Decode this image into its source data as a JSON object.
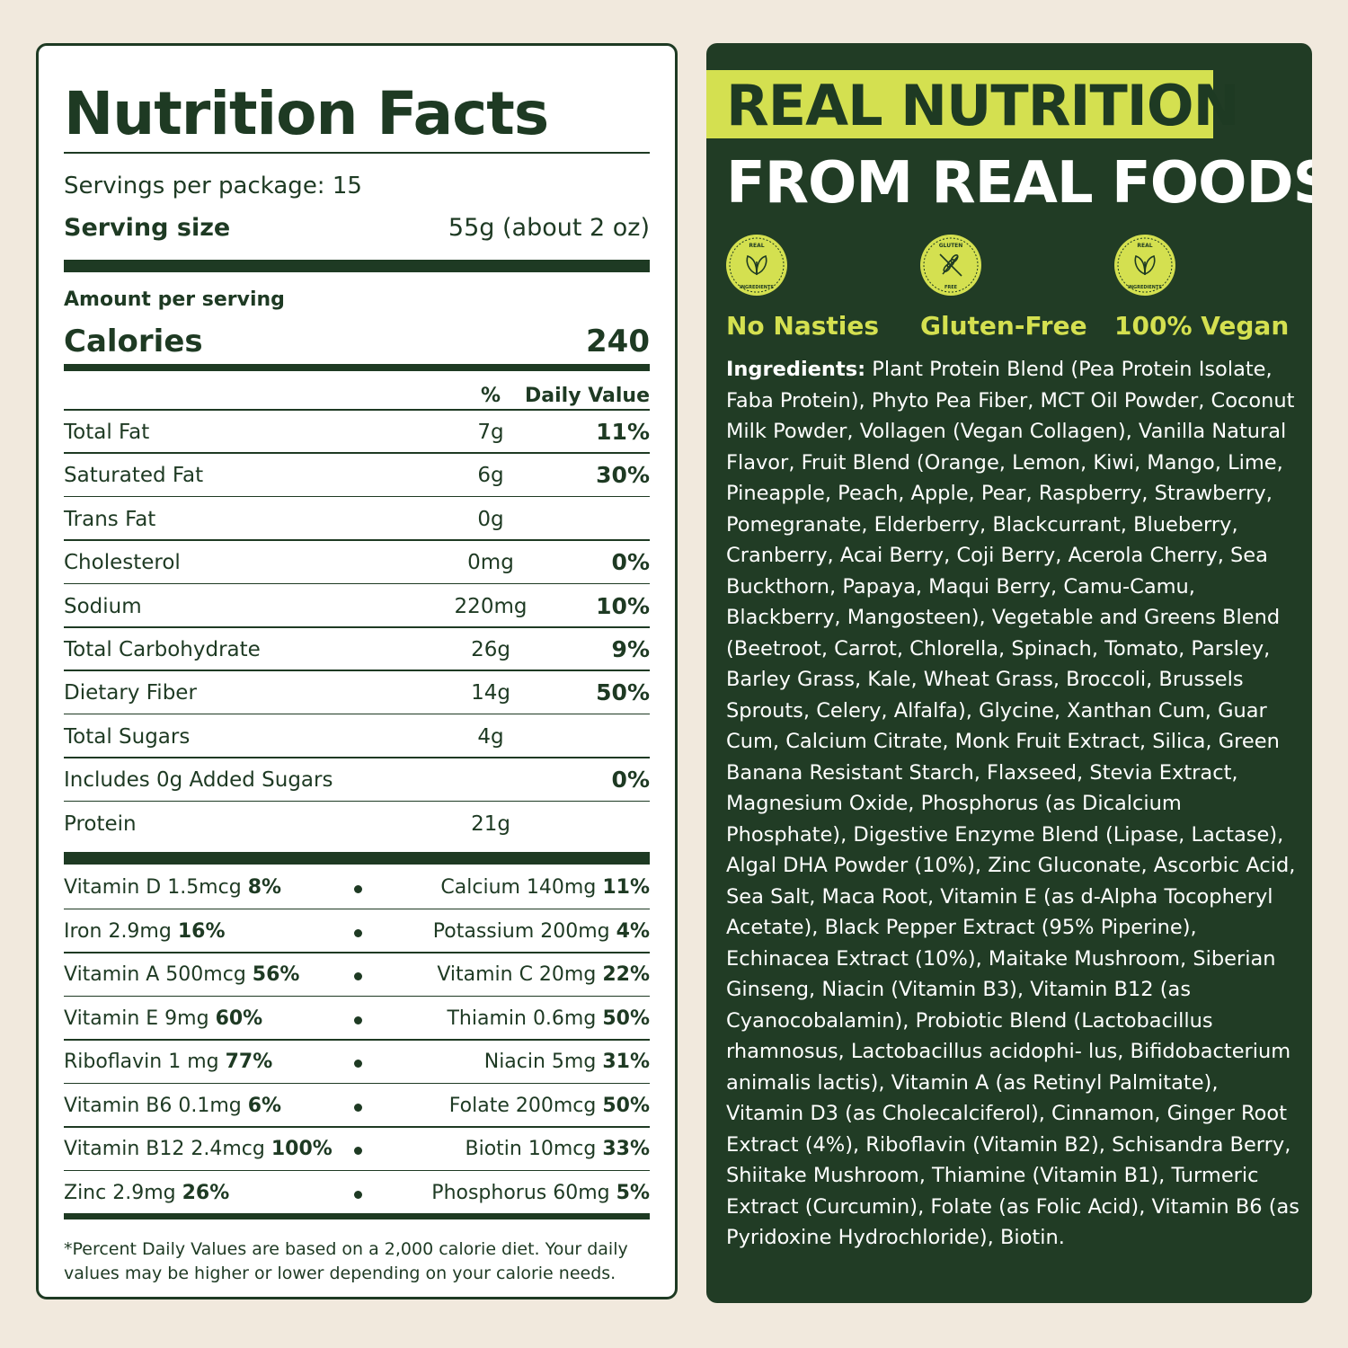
{
  "nutrition": {
    "title": "Nutrition Facts",
    "servings_per_package": "Servings per package: 15",
    "serving_size_label": "Serving size",
    "serving_size_value": "55g (about 2 oz)",
    "amount_per_serving": "Amount per serving",
    "calories_label": "Calories",
    "calories_value": "240",
    "header_pct": "%",
    "header_dv": "Daily Value",
    "rows": [
      {
        "name": "Total Fat",
        "amount": "7g",
        "dv": "11%"
      },
      {
        "name": "Saturated Fat",
        "amount": "6g",
        "dv": "30%"
      },
      {
        "name": "Trans Fat",
        "amount": "0g",
        "dv": ""
      },
      {
        "name": "Cholesterol",
        "amount": "0mg",
        "dv": "0%"
      },
      {
        "name": "Sodium",
        "amount": "220mg",
        "dv": "10%"
      },
      {
        "name": "Total Carbohydrate",
        "amount": "26g",
        "dv": "9%"
      },
      {
        "name": "Dietary Fiber",
        "amount": "14g",
        "dv": "50%"
      },
      {
        "name": "Total Sugars",
        "amount": "4g",
        "dv": ""
      },
      {
        "name": "Includes 0g Added Sugars",
        "amount": "",
        "dv": "0%"
      },
      {
        "name": "Protein",
        "amount": "21g",
        "dv": ""
      }
    ],
    "vitamins": [
      {
        "left_name": "Vitamin D 1.5mcg",
        "left_dv": "8%",
        "right_name": "Calcium 140mg",
        "right_dv": "11%"
      },
      {
        "left_name": "Iron 2.9mg",
        "left_dv": "16%",
        "right_name": "Potassium 200mg",
        "right_dv": "4%"
      },
      {
        "left_name": "Vitamin A 500mcg",
        "left_dv": "56%",
        "right_name": "Vitamin C 20mg",
        "right_dv": "22%"
      },
      {
        "left_name": "Vitamin E 9mg",
        "left_dv": "60%",
        "right_name": "Thiamin 0.6mg",
        "right_dv": "50%"
      },
      {
        "left_name": "Riboflavin 1 mg",
        "left_dv": "77%",
        "right_name": "Niacin 5mg",
        "right_dv": "31%"
      },
      {
        "left_name": "Vitamin B6 0.1mg",
        "left_dv": "6%",
        "right_name": "Folate 200mcg",
        "right_dv": "50%"
      },
      {
        "left_name": "Vitamin B12 2.4mcg",
        "left_dv": "100%",
        "right_name": "Biotin 10mcg",
        "right_dv": "33%"
      },
      {
        "left_name": "Zinc 2.9mg",
        "left_dv": "26%",
        "right_name": "Phosphorus 60mg",
        "right_dv": "5%"
      }
    ],
    "footnote": "*Percent Daily Values are based on a 2,000 calorie diet. Your daily values may be higher or lower depending on your calorie needs."
  },
  "promo": {
    "headline_1": "REAL NUTRITION",
    "headline_2": "FROM REAL FOODS.",
    "badges": [
      {
        "icon": "leaf-real-ingredients-icon",
        "label": "No Nasties",
        "ring_top": "REAL",
        "ring_bottom": "INGREDIENTS"
      },
      {
        "icon": "wheat-gluten-free-icon",
        "label": "Gluten-Free",
        "ring_top": "GLUTEN",
        "ring_bottom": "FREE"
      },
      {
        "icon": "leaf-real-ingredients-icon",
        "label": "100% Vegan",
        "ring_top": "REAL",
        "ring_bottom": "INGREDIENTS"
      }
    ],
    "ingredients_label": "Ingredients:",
    "ingredients_text": " Plant Protein Blend (Pea Protein Isolate, Faba Protein), Phyto Pea Fiber, MCT Oil Powder, Coconut Milk Powder, Vollagen (Vegan Collagen), Vanilla Natural Flavor, Fruit Blend (Orange, Lemon, Kiwi, Mango, Lime, Pineapple, Peach, Apple, Pear, Raspberry, Strawberry, Pomegranate, Elderberry, Blackcurrant, Blueberry, Cranberry, Acai Berry, Coji Berry, Acerola Cherry, Sea Buckthorn, Papaya, Maqui Berry, Camu-Camu, Blackberry, Mangosteen), Vegetable and Greens Blend (Beetroot, Carrot, Chlorella, Spinach, Tomato, Parsley, Barley Grass, Kale, Wheat Grass, Broccoli, Brussels Sprouts, Celery, Alfalfa), Glycine, Xanthan Cum, Guar Cum, Calcium Citrate, Monk Fruit Extract, Silica, Green Banana Resistant Starch, Flaxseed, Stevia Extract, Magnesium Oxide, Phosphorus (as Dicalcium Phosphate), Digestive Enzyme Blend (Lipase, Lactase), Algal DHA Powder (10%), Zinc Gluconate, Ascorbic Acid, Sea Salt, Maca Root, Vitamin E (as d-Alpha Tocopheryl Acetate), Black Pepper Extract (95% Piperine), Echinacea Extract (10%), Maitake Mushroom, Siberian Ginseng, Niacin (Vitamin B3), Vitamin B12 (as Cyanocobalamin), Probiotic Blend (Lactobacillus rhamnosus, Lactobacillus acidophi- lus, Bifidobacterium animalis lactis), Vitamin A (as Retinyl Palmitate), Vitamin D3 (as Cholecalciferol), Cinnamon, Ginger Root Extract (4%), Riboflavin (Vitamin B2), Schisandra Berry, Shiitake Mushroom, Thiamine (Vitamin B1), Turmeric Extract (Curcumin), Folate (as Folic Acid), Vitamin B6 (as Pyridoxine Hydrochloride), Biotin.",
    "colors": {
      "accent": "#d4e050",
      "panel": "#213c25",
      "text_dark": "#1e3a23",
      "background": "#f1e9dd"
    }
  }
}
